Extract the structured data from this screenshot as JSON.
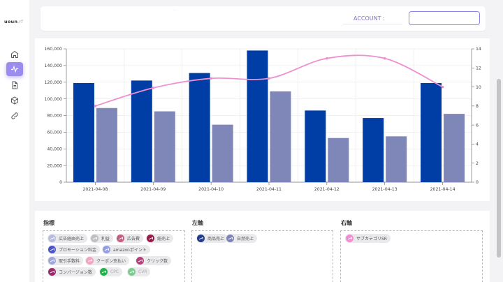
{
  "app": {
    "logo_text": "uoun",
    "logo_mark": ".rf"
  },
  "sidebar": {
    "items": [
      {
        "name": "home-icon",
        "active": false
      },
      {
        "name": "activity-icon",
        "active": true
      },
      {
        "name": "document-icon",
        "active": false
      },
      {
        "name": "package-icon",
        "active": false
      },
      {
        "name": "link-icon",
        "active": false
      }
    ]
  },
  "header": {
    "account_label": "ACCOUNT :",
    "account_value": "",
    "faint_text": "..."
  },
  "chart_data": {
    "type": "bar",
    "categories": [
      "2021-04-08",
      "2021-04-09",
      "2021-04-10",
      "2021-04-11",
      "2021-04-12",
      "2021-04-13",
      "2021-04-14"
    ],
    "series": [
      {
        "name": "商品売上",
        "axis": "left",
        "type": "bar",
        "color": "#003da5",
        "values": [
          119000,
          122000,
          131000,
          158000,
          86000,
          77000,
          119000
        ]
      },
      {
        "name": "自然売上",
        "axis": "left",
        "type": "bar",
        "color": "#7f86b8",
        "values": [
          89000,
          85000,
          69000,
          109000,
          53000,
          55000,
          82000
        ]
      },
      {
        "name": "サブカテゴリSR",
        "axis": "right",
        "type": "line",
        "color": "#ee8fcf",
        "values": [
          8,
          9.9,
          10.9,
          10.9,
          13,
          13,
          10
        ]
      }
    ],
    "y_left": {
      "min": 0,
      "max": 160000,
      "ticks": [
        "0",
        "20,000",
        "40,000",
        "60,000",
        "80,000",
        "100,000",
        "120,000",
        "140,000",
        "160,000"
      ]
    },
    "y_right": {
      "min": 0,
      "max": 14,
      "ticks": [
        "0",
        "2",
        "4",
        "6",
        "8",
        "10",
        "12",
        "14"
      ]
    },
    "grid": true
  },
  "panels": {
    "metrics": {
      "title": "指標",
      "chips": [
        {
          "label": "広告経由売上",
          "color": "#b8bde0",
          "muted": false
        },
        {
          "label": "利益",
          "color": "#c0c0c4",
          "muted": false
        },
        {
          "label": "広告費",
          "color": "#c2607f",
          "muted": false
        },
        {
          "label": "総売上",
          "color": "#9a1a4a",
          "muted": false
        },
        {
          "label": "プロモーション料金",
          "color": "#4b55c8",
          "muted": false
        },
        {
          "label": "amazonポイント",
          "color": "#95a0e0",
          "muted": false
        },
        {
          "label": "取引手数料",
          "color": "#a0a6da",
          "muted": false
        },
        {
          "label": "クーポン支払い",
          "color": "#f2a4c0",
          "muted": false
        },
        {
          "label": "クリック数",
          "color": "#b0457a",
          "muted": false
        },
        {
          "label": "コンバージョン数",
          "color": "#9a2b6a",
          "muted": false
        },
        {
          "label": "CPC",
          "color": "#22b24c",
          "muted": true
        },
        {
          "label": "CVR",
          "color": "#7dcc90",
          "muted": true
        }
      ]
    },
    "left_axis": {
      "title": "左軸",
      "chips": [
        {
          "label": "商品売上",
          "color": "#1f3b8f",
          "muted": false
        },
        {
          "label": "自然売上",
          "color": "#7c84b8",
          "muted": false
        }
      ]
    },
    "right_axis": {
      "title": "右軸",
      "chips": [
        {
          "label": "サブカテゴリSR",
          "color": "#ee8fcf",
          "muted": false
        }
      ]
    }
  }
}
